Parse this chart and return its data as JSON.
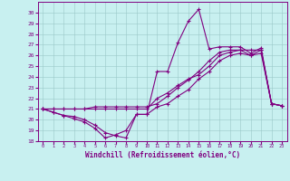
{
  "xlabel": "Windchill (Refroidissement éolien,°C)",
  "bg_color": "#c8f0f0",
  "line_color": "#800080",
  "x_values": [
    0,
    1,
    2,
    3,
    4,
    5,
    6,
    7,
    8,
    9,
    10,
    11,
    12,
    13,
    14,
    15,
    16,
    17,
    18,
    19,
    20,
    21,
    22,
    23
  ],
  "series1": [
    21.0,
    20.7,
    20.4,
    20.1,
    19.8,
    19.2,
    18.3,
    18.6,
    19.0,
    20.5,
    20.5,
    24.5,
    24.5,
    27.2,
    29.2,
    30.3,
    26.6,
    26.8,
    26.8,
    26.8,
    26.2,
    26.7,
    21.5,
    21.3
  ],
  "series2": [
    21.0,
    21.0,
    21.0,
    21.0,
    21.0,
    21.2,
    21.2,
    21.2,
    21.2,
    21.2,
    21.2,
    21.5,
    22.2,
    23.0,
    23.7,
    24.5,
    25.5,
    26.3,
    26.5,
    26.5,
    26.5,
    26.5,
    21.5,
    21.3
  ],
  "series3": [
    21.0,
    21.0,
    21.0,
    21.0,
    21.0,
    21.0,
    21.0,
    21.0,
    21.0,
    21.0,
    21.0,
    22.0,
    22.5,
    23.2,
    23.8,
    24.2,
    25.0,
    26.0,
    26.3,
    26.5,
    26.0,
    26.5,
    21.5,
    21.3
  ],
  "series4": [
    21.0,
    20.7,
    20.4,
    20.3,
    20.0,
    19.5,
    18.8,
    18.5,
    18.3,
    20.5,
    20.5,
    21.2,
    21.5,
    22.2,
    22.8,
    23.8,
    24.5,
    25.5,
    26.0,
    26.2,
    26.0,
    26.2,
    21.5,
    21.3
  ],
  "ylim": [
    18,
    31
  ],
  "xlim_min": -0.5,
  "xlim_max": 23.5,
  "yticks": [
    18,
    19,
    20,
    21,
    22,
    23,
    24,
    25,
    26,
    27,
    28,
    29,
    30
  ],
  "xticks": [
    0,
    1,
    2,
    3,
    4,
    5,
    6,
    7,
    8,
    9,
    10,
    11,
    12,
    13,
    14,
    15,
    16,
    17,
    18,
    19,
    20,
    21,
    22,
    23
  ]
}
